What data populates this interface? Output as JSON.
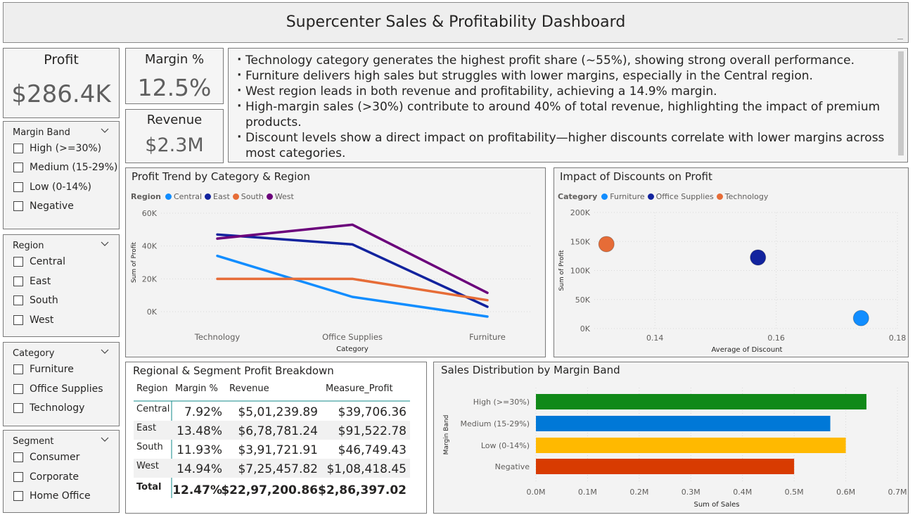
{
  "header": {
    "title": "Supercenter Sales & Profitability Dashboard"
  },
  "kpis": {
    "profit": {
      "label": "Profit",
      "value": "$286.4K"
    },
    "margin": {
      "label": "Margin %",
      "value": "12.5%"
    },
    "revenue": {
      "label": "Revenue",
      "value": "$2.3M"
    }
  },
  "insights": [
    "Technology category generates the highest profit share (~55%), showing strong overall performance.",
    "Furniture delivers high sales but struggles with lower margins, especially in the Central region.",
    "West region leads in both revenue and profitability, achieving a 14.9% margin.",
    "High-margin sales (>30%) contribute to around 40% of total revenue, highlighting the impact of premium products.",
    "Discount levels show a direct impact on profitability—higher discounts correlate with lower margins across most categories."
  ],
  "slicers": {
    "margin_band": {
      "title": "Margin Band",
      "items": [
        "High (>=30%)",
        "Medium (15-29%)",
        "Low (0-14%)",
        "Negative"
      ]
    },
    "region": {
      "title": "Region",
      "items": [
        "Central",
        "East",
        "South",
        "West"
      ]
    },
    "category": {
      "title": "Category",
      "items": [
        "Furniture",
        "Office Supplies",
        "Technology"
      ]
    },
    "segment": {
      "title": "Segment",
      "items": [
        "Consumer",
        "Corporate",
        "Home Office"
      ]
    }
  },
  "table": {
    "title": "Regional & Segment Profit Breakdown",
    "columns": [
      "Region",
      "Margin %",
      "Revenue",
      "Measure_Profit"
    ],
    "rows": [
      [
        "Central",
        "7.92%",
        "$5,01,239.89",
        "$39,706.36"
      ],
      [
        "East",
        "13.48%",
        "$6,78,781.24",
        "$91,522.78"
      ],
      [
        "South",
        "11.93%",
        "$3,91,721.91",
        "$46,749.43"
      ],
      [
        "West",
        "14.94%",
        "$7,25,457.82",
        "$1,08,418.45"
      ]
    ],
    "total": [
      "Total",
      "12.47%",
      "$22,97,200.86",
      "$2,86,397.02"
    ]
  },
  "chart_data": [
    {
      "type": "line",
      "title": "Profit Trend by Category & Region",
      "xlabel": "Category",
      "ylabel": "Sum of Profit",
      "legend_title": "Region",
      "categories": [
        "Technology",
        "Office Supplies",
        "Furniture"
      ],
      "yticks": [
        "0K",
        "20K",
        "40K",
        "60K"
      ],
      "ylim": [
        0,
        60000
      ],
      "series": [
        {
          "name": "Central",
          "color": "#118DFF",
          "values": [
            34000,
            9000,
            -3000
          ]
        },
        {
          "name": "East",
          "color": "#12239E",
          "values": [
            47000,
            41000,
            3000
          ]
        },
        {
          "name": "South",
          "color": "#E66C37",
          "values": [
            20000,
            20000,
            7000
          ]
        },
        {
          "name": "West",
          "color": "#6B007B",
          "values": [
            44500,
            53000,
            11500
          ]
        }
      ]
    },
    {
      "type": "scatter",
      "title": "Impact of Discounts on Profit",
      "xlabel": "Average of Discount",
      "ylabel": "Sum of Profit",
      "legend_title": "Category",
      "xticks": [
        "0.14",
        "0.16",
        "0.18"
      ],
      "yticks": [
        "0K",
        "50K",
        "100K",
        "150K",
        "200K"
      ],
      "xlim": [
        0.13,
        0.18
      ],
      "ylim": [
        0,
        200000
      ],
      "series": [
        {
          "name": "Furniture",
          "color": "#118DFF",
          "x": 0.174,
          "y": 18000
        },
        {
          "name": "Office Supplies",
          "color": "#12239E",
          "x": 0.157,
          "y": 122500
        },
        {
          "name": "Technology",
          "color": "#E66C37",
          "x": 0.132,
          "y": 145500
        }
      ]
    },
    {
      "type": "bar",
      "title": "Sales Distribution by Margin Band",
      "xlabel": "Sum of Sales",
      "ylabel": "Margin Band",
      "categories": [
        "High (>=30%)",
        "Medium (15-29%)",
        "Low (0-14%)",
        "Negative"
      ],
      "values": [
        0.64,
        0.57,
        0.6,
        0.5
      ],
      "colors": [
        "#108918",
        "#0078D7",
        "#FFB900",
        "#D83B01"
      ],
      "xticks": [
        "0.0M",
        "0.1M",
        "0.2M",
        "0.3M",
        "0.4M",
        "0.5M",
        "0.6M",
        "0.7M"
      ],
      "xlim": [
        0,
        0.7
      ]
    }
  ]
}
